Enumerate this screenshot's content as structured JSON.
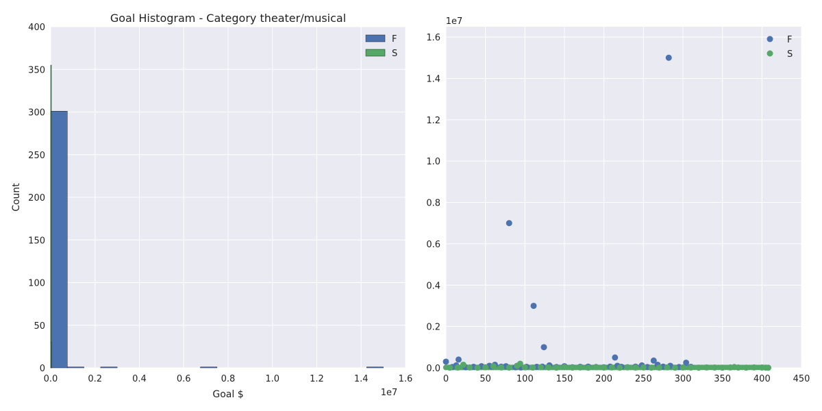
{
  "chart_data": [
    {
      "type": "bar",
      "subtype": "histogram",
      "title": "Goal Histogram - Category theater/musical",
      "xlabel": "Goal $",
      "ylabel": "Count",
      "x_exponent_label": "1e7",
      "xlim": [
        0,
        16000000
      ],
      "ylim": [
        0,
        400
      ],
      "xticks": [
        0,
        2000000,
        4000000,
        6000000,
        8000000,
        10000000,
        12000000,
        14000000,
        16000000
      ],
      "xtick_labels": [
        "0.0",
        "0.2",
        "0.4",
        "0.6",
        "0.8",
        "1.0",
        "1.2",
        "1.4",
        "1.6"
      ],
      "yticks": [
        0,
        50,
        100,
        150,
        200,
        250,
        300,
        350,
        400
      ],
      "grid": true,
      "legend_position": "top-right",
      "series": [
        {
          "name": "F",
          "color": "#4c72b0",
          "bins": [
            {
              "x0": 0,
              "x1": 750000,
              "count": 301
            },
            {
              "x0": 750000,
              "x1": 1500000,
              "count": 1
            },
            {
              "x0": 2250000,
              "x1": 3000000,
              "count": 1
            },
            {
              "x0": 6750000,
              "x1": 7500000,
              "count": 1
            },
            {
              "x0": 14250000,
              "x1": 15000000,
              "count": 1
            }
          ]
        },
        {
          "name": "S",
          "color": "#55a868",
          "bins": [
            {
              "x0": 0,
              "x1": 10000,
              "count": 355
            },
            {
              "x0": 10000,
              "x1": 20000,
              "count": 30
            }
          ]
        }
      ]
    },
    {
      "type": "scatter",
      "title": "",
      "xlabel": "",
      "ylabel": "",
      "y_exponent_label": "1e7",
      "xlim": [
        0,
        450
      ],
      "ylim": [
        0,
        16500000
      ],
      "xticks": [
        0,
        50,
        100,
        150,
        200,
        250,
        300,
        350,
        400,
        450
      ],
      "xtick_labels": [
        "0",
        "50",
        "100",
        "150",
        "200",
        "250",
        "300",
        "350",
        "400",
        "450"
      ],
      "yticks": [
        0,
        2000000,
        4000000,
        6000000,
        8000000,
        10000000,
        12000000,
        14000000,
        16000000
      ],
      "ytick_labels": [
        "0.0",
        "0.2",
        "0.4",
        "0.6",
        "0.8",
        "1.0",
        "1.2",
        "1.4",
        "1.6"
      ],
      "grid": true,
      "legend_position": "top-right",
      "series": [
        {
          "name": "F",
          "color": "#4c72b0",
          "points": [
            [
              0,
              300000
            ],
            [
              8,
              40000
            ],
            [
              13,
              120000
            ],
            [
              16,
              400000
            ],
            [
              25,
              30000
            ],
            [
              35,
              50000
            ],
            [
              45,
              80000
            ],
            [
              55,
              100000
            ],
            [
              58,
              60000
            ],
            [
              62,
              150000
            ],
            [
              70,
              60000
            ],
            [
              76,
              80000
            ],
            [
              80,
              7000000
            ],
            [
              88,
              30000
            ],
            [
              95,
              20000
            ],
            [
              102,
              50000
            ],
            [
              111,
              3000000
            ],
            [
              115,
              50000
            ],
            [
              122,
              60000
            ],
            [
              124,
              1000000
            ],
            [
              131,
              120000
            ],
            [
              140,
              40000
            ],
            [
              150,
              80000
            ],
            [
              160,
              30000
            ],
            [
              170,
              50000
            ],
            [
              180,
              60000
            ],
            [
              190,
              40000
            ],
            [
              200,
              30000
            ],
            [
              208,
              60000
            ],
            [
              214,
              500000
            ],
            [
              217,
              100000
            ],
            [
              222,
              50000
            ],
            [
              230,
              30000
            ],
            [
              240,
              60000
            ],
            [
              248,
              120000
            ],
            [
              255,
              40000
            ],
            [
              263,
              350000
            ],
            [
              268,
              150000
            ],
            [
              275,
              60000
            ],
            [
              282,
              15000000
            ],
            [
              284,
              100000
            ],
            [
              295,
              40000
            ],
            [
              304,
              250000
            ],
            [
              310,
              50000
            ]
          ]
        },
        {
          "name": "S",
          "color": "#55a868",
          "points": [
            [
              5,
              10000
            ],
            [
              15,
              15000
            ],
            [
              22,
              150000
            ],
            [
              30,
              20000
            ],
            [
              40,
              10000
            ],
            [
              50,
              30000
            ],
            [
              60,
              80000
            ],
            [
              70,
              20000
            ],
            [
              80,
              15000
            ],
            [
              90,
              100000
            ],
            [
              94,
              200000
            ],
            [
              100,
              25000
            ],
            [
              110,
              15000
            ],
            [
              120,
              30000
            ],
            [
              130,
              20000
            ],
            [
              140,
              10000
            ],
            [
              150,
              40000
            ],
            [
              160,
              15000
            ],
            [
              170,
              20000
            ],
            [
              180,
              10000
            ],
            [
              190,
              30000
            ],
            [
              200,
              15000
            ],
            [
              210,
              20000
            ],
            [
              220,
              10000
            ],
            [
              230,
              25000
            ],
            [
              240,
              15000
            ],
            [
              250,
              20000
            ],
            [
              260,
              10000
            ],
            [
              270,
              15000
            ],
            [
              280,
              25000
            ],
            [
              290,
              10000
            ],
            [
              300,
              20000
            ],
            [
              310,
              15000
            ],
            [
              320,
              10000
            ],
            [
              330,
              20000
            ],
            [
              340,
              15000
            ],
            [
              350,
              10000
            ],
            [
              360,
              20000
            ],
            [
              365,
              40000
            ],
            [
              370,
              15000
            ],
            [
              380,
              10000
            ],
            [
              390,
              20000
            ],
            [
              400,
              15000
            ],
            [
              405,
              10000
            ],
            [
              408,
              5000
            ]
          ]
        }
      ]
    }
  ]
}
